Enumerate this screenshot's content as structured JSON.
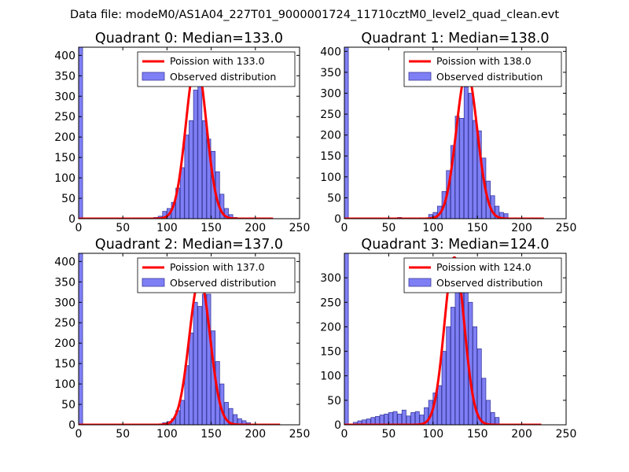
{
  "figure": {
    "suptitle": "Data file: modeM0/AS1A04_227T01_9000001724_11710cztM0_level2_quad_clean.evt"
  },
  "colors": {
    "hist_fill": "#7f7ff5",
    "hist_edge": "#3b3b9e",
    "poisson_line": "#ff0000"
  },
  "chart_data": [
    {
      "type": "histogram+line",
      "title": "Quadrant 0: Median=133.0",
      "median": 133.0,
      "xlim": [
        0,
        250
      ],
      "ylim": [
        0,
        420
      ],
      "xticks": [
        0,
        50,
        100,
        150,
        200,
        250
      ],
      "yticks": [
        0,
        50,
        100,
        150,
        200,
        250,
        300,
        350,
        400
      ],
      "legend": [
        "Poission with 133.0",
        "Observed distribution"
      ],
      "legend_position": "upper-right",
      "bin_width": 4.5,
      "histogram": [
        [
          0,
          420
        ],
        [
          85,
          3
        ],
        [
          90,
          6
        ],
        [
          95,
          18
        ],
        [
          100,
          25
        ],
        [
          105,
          40
        ],
        [
          110,
          75
        ],
        [
          115,
          125
        ],
        [
          120,
          205
        ],
        [
          125,
          240
        ],
        [
          130,
          315
        ],
        [
          135,
          345
        ],
        [
          140,
          240
        ],
        [
          145,
          195
        ],
        [
          150,
          165
        ],
        [
          155,
          115
        ],
        [
          160,
          60
        ],
        [
          165,
          25
        ],
        [
          170,
          10
        ],
        [
          175,
          3
        ]
      ],
      "poisson_max_x": 220
    },
    {
      "type": "histogram+line",
      "title": "Quadrant 1: Median=138.0",
      "median": 138.0,
      "xlim": [
        0,
        250
      ],
      "ylim": [
        0,
        410
      ],
      "xticks": [
        0,
        50,
        100,
        150,
        200,
        250
      ],
      "yticks": [
        0,
        50,
        100,
        150,
        200,
        250,
        300,
        350,
        400
      ],
      "legend": [
        "Poission with 138.0",
        "Observed distribution"
      ],
      "legend_position": "upper-right",
      "bin_width": 4.5,
      "histogram": [
        [
          0,
          410
        ],
        [
          60,
          3
        ],
        [
          95,
          10
        ],
        [
          100,
          15
        ],
        [
          105,
          30
        ],
        [
          110,
          65
        ],
        [
          115,
          115
        ],
        [
          120,
          175
        ],
        [
          125,
          245
        ],
        [
          130,
          240
        ],
        [
          135,
          315
        ],
        [
          140,
          300
        ],
        [
          145,
          235
        ],
        [
          150,
          210
        ],
        [
          155,
          145
        ],
        [
          160,
          90
        ],
        [
          165,
          55
        ],
        [
          170,
          30
        ],
        [
          175,
          15
        ],
        [
          180,
          12
        ]
      ],
      "poisson_max_x": 225
    },
    {
      "type": "histogram+line",
      "title": "Quadrant 2: Median=137.0",
      "median": 137.0,
      "xlim": [
        0,
        250
      ],
      "ylim": [
        0,
        420
      ],
      "xticks": [
        0,
        50,
        100,
        150,
        200,
        250
      ],
      "yticks": [
        0,
        50,
        100,
        150,
        200,
        250,
        300,
        350,
        400
      ],
      "legend": [
        "Poission with 137.0",
        "Observed distribution"
      ],
      "legend_position": "upper-right",
      "bin_width": 4.5,
      "histogram": [
        [
          0,
          420
        ],
        [
          95,
          5
        ],
        [
          100,
          8
        ],
        [
          105,
          15
        ],
        [
          110,
          35
        ],
        [
          115,
          60
        ],
        [
          120,
          145
        ],
        [
          125,
          225
        ],
        [
          130,
          300
        ],
        [
          135,
          290
        ],
        [
          140,
          320
        ],
        [
          145,
          320
        ],
        [
          150,
          230
        ],
        [
          155,
          155
        ],
        [
          160,
          100
        ],
        [
          165,
          55
        ],
        [
          170,
          40
        ],
        [
          175,
          25
        ],
        [
          180,
          15
        ],
        [
          185,
          10
        ],
        [
          190,
          5
        ]
      ],
      "poisson_max_x": 228
    },
    {
      "type": "histogram+line",
      "title": "Quadrant 3: Median=124.0",
      "median": 124.0,
      "xlim": [
        0,
        250
      ],
      "ylim": [
        0,
        350
      ],
      "xticks": [
        0,
        50,
        100,
        150,
        200,
        250
      ],
      "yticks": [
        0,
        50,
        100,
        150,
        200,
        250,
        300
      ],
      "legend": [
        "Poission with 124.0",
        "Observed distribution"
      ],
      "legend_position": "upper-right",
      "bin_width": 4.5,
      "histogram": [
        [
          0,
          350
        ],
        [
          10,
          5
        ],
        [
          15,
          8
        ],
        [
          20,
          10
        ],
        [
          25,
          12
        ],
        [
          30,
          15
        ],
        [
          35,
          17
        ],
        [
          40,
          20
        ],
        [
          45,
          22
        ],
        [
          50,
          25
        ],
        [
          55,
          27
        ],
        [
          60,
          22
        ],
        [
          65,
          30
        ],
        [
          70,
          18
        ],
        [
          75,
          25
        ],
        [
          80,
          27
        ],
        [
          85,
          20
        ],
        [
          90,
          35
        ],
        [
          95,
          50
        ],
        [
          100,
          65
        ],
        [
          105,
          80
        ],
        [
          110,
          150
        ],
        [
          115,
          200
        ],
        [
          120,
          240
        ],
        [
          125,
          305
        ],
        [
          130,
          290
        ],
        [
          135,
          290
        ],
        [
          140,
          250
        ],
        [
          145,
          200
        ],
        [
          150,
          155
        ],
        [
          155,
          95
        ],
        [
          160,
          50
        ],
        [
          165,
          25
        ],
        [
          170,
          15
        ]
      ],
      "poisson_max_x": 222
    }
  ]
}
